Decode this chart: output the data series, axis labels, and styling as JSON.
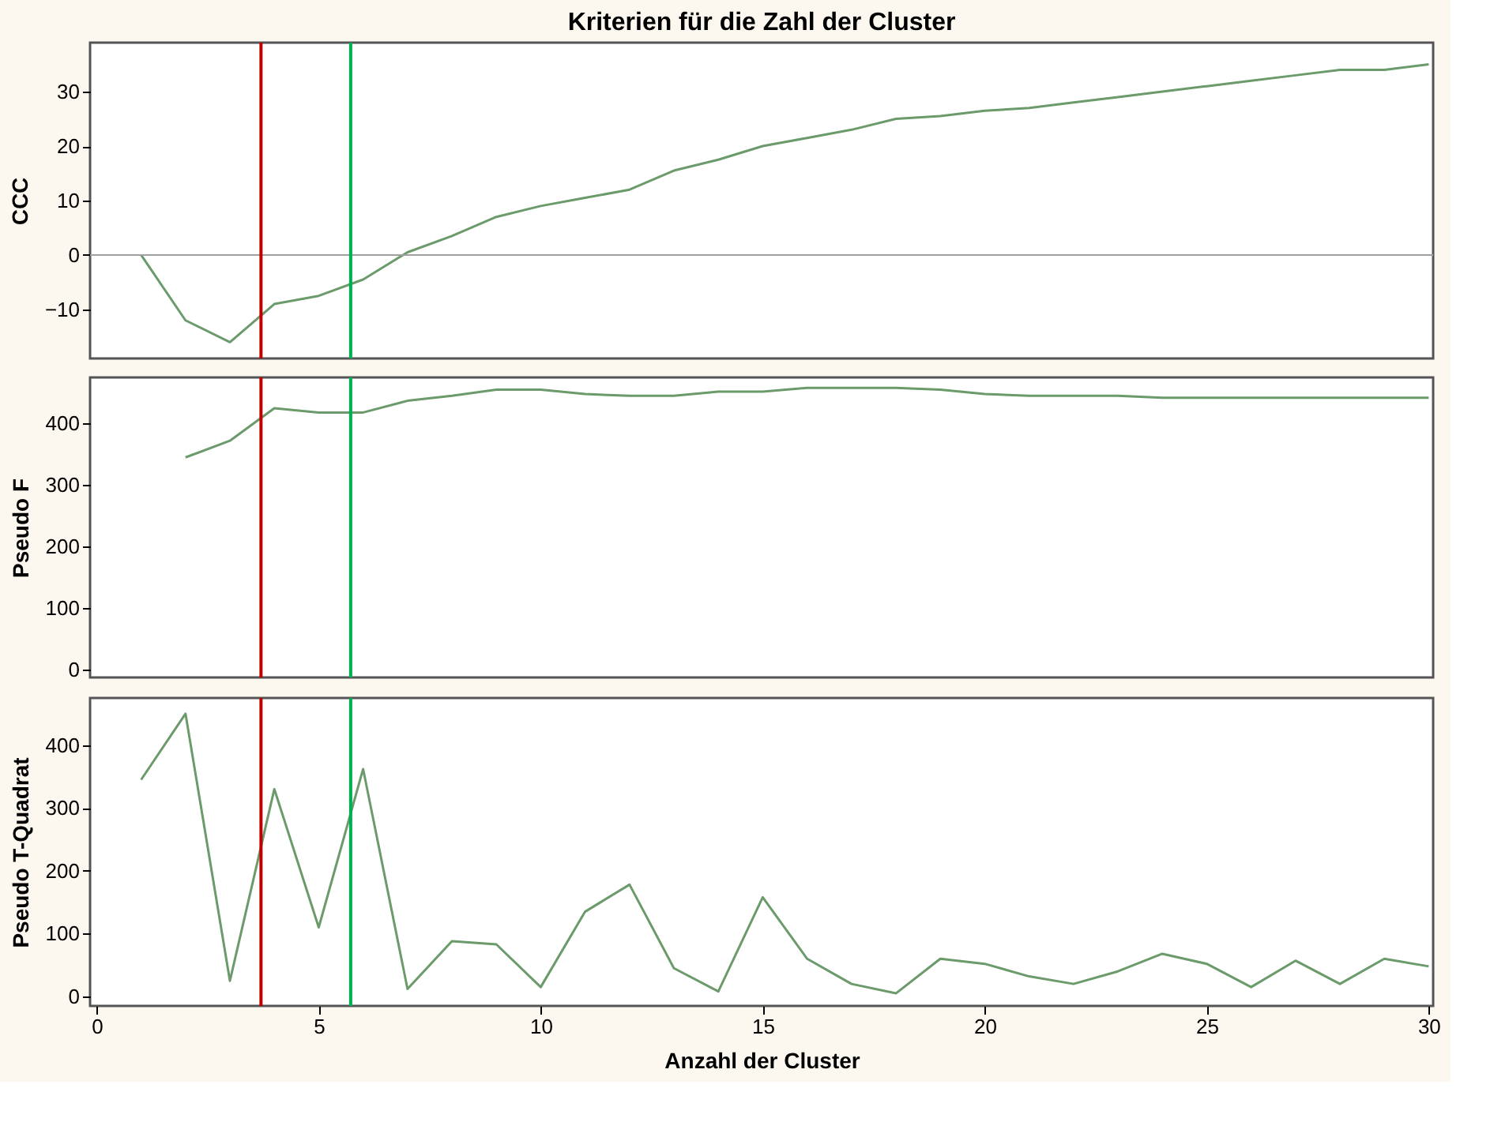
{
  "chart_data": [
    {
      "type": "line",
      "title": "Kriterien für die Zahl der Cluster",
      "ylabel": "CCC",
      "x": [
        1,
        2,
        3,
        4,
        5,
        6,
        7,
        8,
        9,
        10,
        11,
        12,
        13,
        14,
        15,
        16,
        17,
        18,
        19,
        20,
        21,
        22,
        23,
        24,
        25,
        26,
        27,
        28,
        29,
        30
      ],
      "series": [
        {
          "color": "#6b9a6b",
          "values": [
            0,
            -12,
            -16,
            -9,
            -7.5,
            -4.5,
            0.5,
            3.5,
            7,
            9,
            10.5,
            12,
            15.5,
            17.5,
            20,
            21.5,
            23,
            25,
            25.5,
            26.5,
            27,
            28,
            29,
            30,
            31,
            32,
            33,
            34,
            34,
            35
          ]
        }
      ],
      "xlim": [
        -0.15,
        30.1
      ],
      "xticks": [
        0,
        5,
        10,
        15,
        20,
        25,
        30
      ],
      "ylim": [
        -19,
        39
      ],
      "yticks": [
        -10,
        0,
        10,
        20,
        30
      ],
      "tick_labels": "y",
      "grid": false,
      "line_style": "solid",
      "ref_lines": [
        {
          "axis": "y",
          "value": 0,
          "color": "#a0a0a0"
        },
        {
          "axis": "x",
          "value": 3.7,
          "color": "#c00000"
        },
        {
          "axis": "x",
          "value": 5.72,
          "color": "#00b050"
        }
      ]
    },
    {
      "type": "line",
      "ylabel": "Pseudo F",
      "x": [
        2,
        3,
        4,
        5,
        6,
        7,
        8,
        9,
        10,
        11,
        12,
        13,
        14,
        15,
        16,
        17,
        18,
        19,
        20,
        21,
        22,
        23,
        24,
        25,
        26,
        27,
        28,
        29,
        30
      ],
      "series": [
        {
          "color": "#6b9a6b",
          "values": [
            345,
            372,
            425,
            418,
            418,
            437,
            445,
            455,
            455,
            448,
            445,
            445,
            452,
            452,
            458,
            458,
            458,
            455,
            448,
            445,
            445,
            445,
            442,
            442,
            442,
            442,
            442,
            442,
            442
          ]
        }
      ],
      "xlim": [
        -0.15,
        30.1
      ],
      "xticks": [
        0,
        5,
        10,
        15,
        20,
        25,
        30
      ],
      "ylim": [
        -13,
        475
      ],
      "yticks": [
        0,
        100,
        200,
        300,
        400
      ],
      "tick_labels": "y",
      "grid": false,
      "line_style": "solid",
      "ref_lines": [
        {
          "axis": "x",
          "value": 3.7,
          "color": "#c00000"
        },
        {
          "axis": "x",
          "value": 5.72,
          "color": "#00b050"
        }
      ]
    },
    {
      "type": "line",
      "ylabel": "Pseudo T-Quadrat",
      "xlabel": "Anzahl der Cluster",
      "x": [
        1,
        2,
        3,
        4,
        5,
        6,
        7,
        8,
        9,
        10,
        11,
        12,
        13,
        14,
        15,
        16,
        17,
        18,
        19,
        20,
        21,
        22,
        23,
        24,
        25,
        26,
        27,
        28,
        29,
        30
      ],
      "series": [
        {
          "color": "#6b9a6b",
          "values": [
            345,
            450,
            25,
            330,
            110,
            362,
            12,
            88,
            83,
            15,
            135,
            178,
            45,
            8,
            158,
            60,
            20,
            5,
            60,
            52,
            32,
            20,
            40,
            68,
            52,
            15,
            57,
            20,
            60,
            48
          ]
        }
      ],
      "xlim": [
        -0.15,
        30.1
      ],
      "xticks": [
        0,
        5,
        10,
        15,
        20,
        25,
        30
      ],
      "ylim": [
        -15,
        475
      ],
      "yticks": [
        0,
        100,
        200,
        300,
        400
      ],
      "grid": false,
      "line_style": "solid",
      "ref_lines": [
        {
          "axis": "x",
          "value": 3.7,
          "color": "#c00000"
        },
        {
          "axis": "x",
          "value": 5.72,
          "color": "#00b050"
        }
      ]
    }
  ]
}
